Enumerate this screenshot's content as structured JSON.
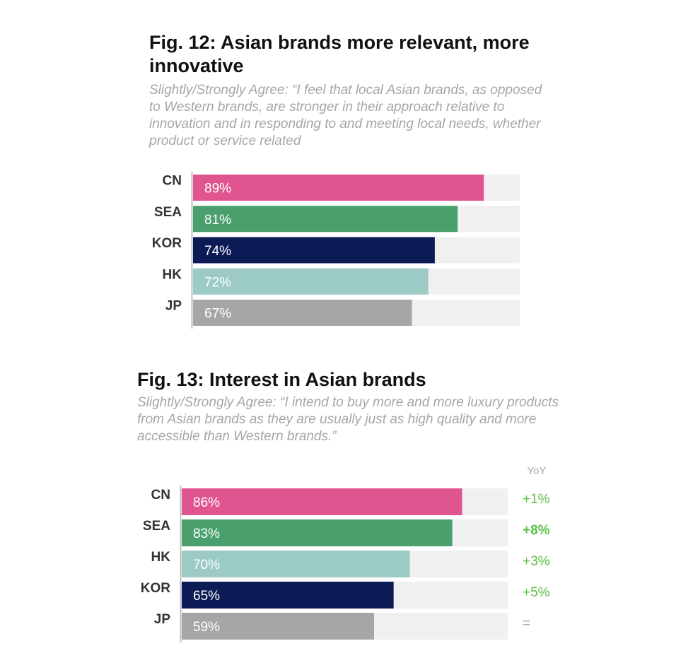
{
  "chart_data": [
    {
      "type": "bar",
      "orientation": "horizontal",
      "title": "Fig. 12: Asian brands more relevant, more innovative",
      "subtitle": "Slightly/Strongly Agree: “I feel that local Asian brands, as opposed to Western brands, are stronger in their approach relative to innovation and in responding to and meeting local needs, whether product or service related",
      "categories": [
        "CN",
        "SEA",
        "KOR",
        "HK",
        "JP"
      ],
      "values": [
        89,
        81,
        74,
        72,
        67
      ],
      "value_labels": [
        "89%",
        "81%",
        "74%",
        "72%",
        "67%"
      ],
      "colors": [
        "#e0558f",
        "#4aa06c",
        "#0c1a55",
        "#9ccbc6",
        "#a6a6a6"
      ],
      "xlim": [
        0,
        100
      ],
      "unit": "%",
      "grid": false,
      "legend": "none"
    },
    {
      "type": "bar",
      "orientation": "horizontal",
      "title": "Fig. 13: Interest in Asian brands",
      "subtitle": "Slightly/Strongly Agree: “I intend to buy more and more luxury products from Asian brands as they are usually just as high quality and more accessible than Western brands.”",
      "categories": [
        "CN",
        "SEA",
        "HK",
        "KOR",
        "JP"
      ],
      "values": [
        86,
        83,
        70,
        65,
        59
      ],
      "value_labels": [
        "86%",
        "83%",
        "70%",
        "65%",
        "59%"
      ],
      "colors": [
        "#e0558f",
        "#4aa06c",
        "#9ccbc6",
        "#0c1a55",
        "#a6a6a6"
      ],
      "yoy_header": "YoY",
      "yoy": [
        "+1%",
        "+8%",
        "+3%",
        "+5%",
        "="
      ],
      "yoy_bold": [
        false,
        true,
        false,
        false,
        false
      ],
      "yoy_colors": [
        "#5cc044",
        "#5cc044",
        "#5cc044",
        "#5cc044",
        "#a6a6a6"
      ],
      "xlim": [
        0,
        100
      ],
      "unit": "%",
      "grid": false,
      "legend": "none"
    }
  ]
}
